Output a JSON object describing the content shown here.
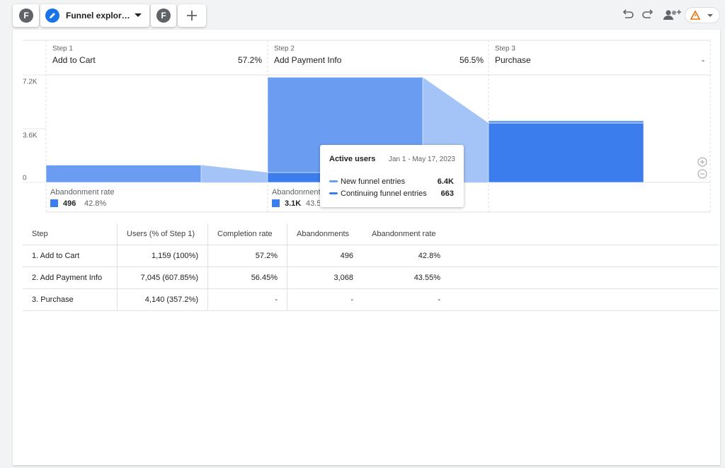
{
  "tabs": {
    "avatar_left": "F",
    "exploration_name": "Funnel explor…",
    "avatar_right": "F"
  },
  "chart_data": {
    "type": "bar",
    "stacked": true,
    "step_labels": [
      "Step 1",
      "Step 2",
      "Step 3"
    ],
    "categories": [
      "Add to Cart",
      "Add Payment Info",
      "Purchase"
    ],
    "completion_labels": [
      "57.2%",
      "56.5%",
      "-"
    ],
    "series": [
      {
        "name": "New funnel entries",
        "color": "#6a9df2",
        "values": [
          1159,
          6382,
          163
        ]
      },
      {
        "name": "Continuing funnel entries",
        "color": "#3b7ded",
        "values": [
          0,
          663,
          3977
        ]
      }
    ],
    "ylim": [
      0,
      7200
    ],
    "yticks": [
      0,
      {
        "value": 3600,
        "label": "3.6K"
      },
      {
        "value": 7200,
        "label": "7.2K"
      }
    ],
    "grid": true,
    "abandonment": {
      "label": "Abandonment rate",
      "counts": [
        "496",
        "3.1K"
      ],
      "rates": [
        "42.8%",
        "43.5"
      ]
    },
    "tooltip": {
      "title": "Active users",
      "date": "Jan 1 - May 17, 2023",
      "value_labels": [
        "6.4K",
        "663"
      ]
    }
  },
  "table": {
    "headers": [
      "Step",
      "Users (% of Step 1)",
      "Completion rate",
      "Abandonments",
      "Abandonment rate"
    ],
    "rows": [
      [
        "1. Add to Cart",
        "1,159 (100%)",
        "57.2%",
        "496",
        "42.8%"
      ],
      [
        "2. Add Payment Info",
        "7,045 (607.85%)",
        "56.45%",
        "3,068",
        "43.55%"
      ],
      [
        "3. Purchase",
        "4,140 (357.2%)",
        "-",
        "-",
        "-"
      ]
    ]
  }
}
